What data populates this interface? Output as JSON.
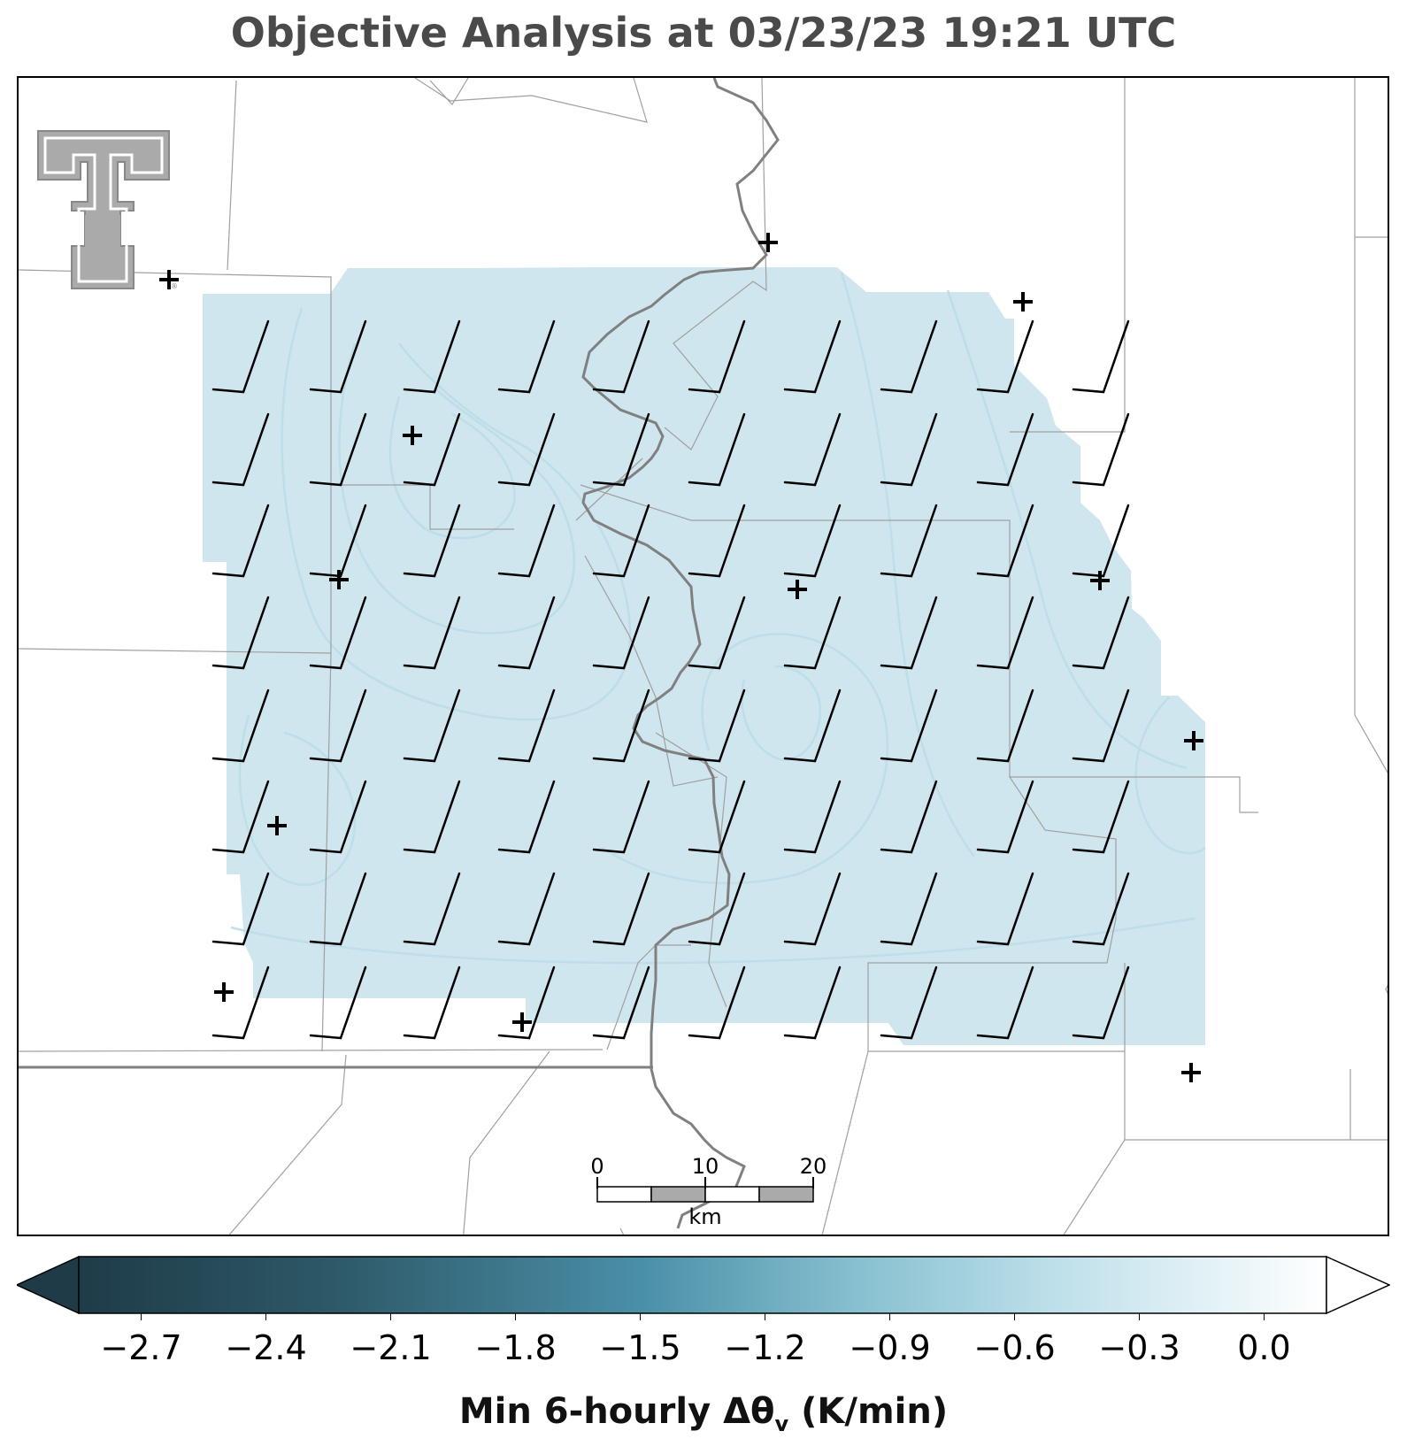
{
  "title": "Objective Analysis at 03/23/23 19:21 UTC",
  "colorbar": {
    "label_prefix": "Min 6-hourly Δθ",
    "label_sub": "v",
    "label_suffix": " (K/min)",
    "ticks": [
      "−2.7",
      "−2.4",
      "−2.1",
      "−1.8",
      "−1.5",
      "−1.2",
      "−0.9",
      "−0.6",
      "−0.3",
      "0.0"
    ],
    "min": -2.85,
    "max": 0.15,
    "colors": {
      "dark": "#1f3b48",
      "mid": "#4a8fa8",
      "light": "#b5dbe6",
      "white": "#ffffff"
    }
  },
  "field": {
    "fill_color": "#cfe6ee",
    "contour_color": "#bcdde8",
    "value_range_K_per_min": [
      -0.9,
      -0.6
    ]
  },
  "scale_bar": {
    "labels": [
      "0",
      "10",
      "20"
    ],
    "unit": "km"
  },
  "logo": {
    "name": "texas-tech-double-t-logo",
    "registered": "®"
  },
  "markers": {
    "glyph": "+"
  },
  "colors": {
    "state_border": "#808080",
    "county_line": "#a0a0a0",
    "barb": "#000000"
  }
}
